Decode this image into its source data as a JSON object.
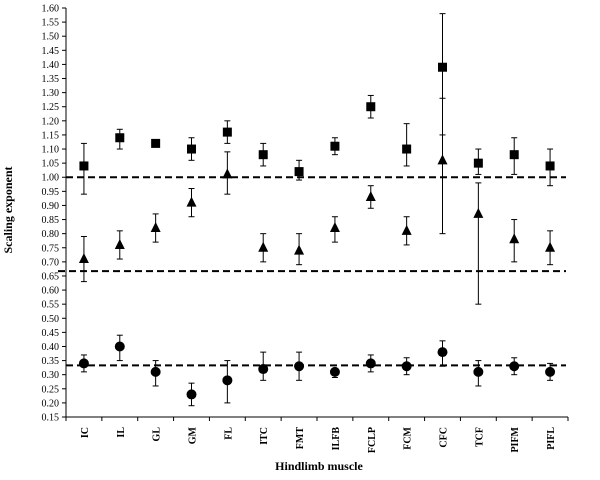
{
  "chart_data": {
    "type": "scatter",
    "xlabel": "Hindlimb muscle",
    "ylabel": "Scaling exponent",
    "ylim": [
      0.15,
      1.6
    ],
    "ytick_step": 0.05,
    "ytick_labels": [
      "0.15",
      "0.20",
      "0.25",
      "0.30",
      "0.35",
      "0.40",
      "0.45",
      "0.50",
      "0.55",
      "0.60",
      "0.65",
      "0.70",
      "0.75",
      "0.80",
      "0.85",
      "0.90",
      "0.95",
      "1.00",
      "1.05",
      "1.10",
      "1.15",
      "1.20",
      "1.25",
      "1.30",
      "1.35",
      "1.40",
      "1.45",
      "1.50",
      "1.55",
      "1.60"
    ],
    "categories": [
      "IC",
      "IL",
      "GL",
      "GM",
      "FL",
      "ITC",
      "FMT",
      "ILFB",
      "FCLP",
      "FCM",
      "CFC",
      "TCF",
      "PIFM",
      "PIFL"
    ],
    "series": [
      {
        "marker": "square",
        "values": [
          1.04,
          1.14,
          1.12,
          1.1,
          1.16,
          1.08,
          1.02,
          1.11,
          1.25,
          1.1,
          1.39,
          1.05,
          1.08,
          1.04
        ],
        "err_low": [
          0.94,
          1.1,
          1.11,
          1.06,
          1.12,
          1.04,
          0.99,
          1.08,
          1.21,
          1.04,
          1.15,
          1.01,
          1.01,
          0.97
        ],
        "err_high": [
          1.12,
          1.17,
          1.13,
          1.14,
          1.2,
          1.12,
          1.06,
          1.14,
          1.29,
          1.19,
          1.58,
          1.1,
          1.14,
          1.1
        ]
      },
      {
        "marker": "triangle",
        "values": [
          0.71,
          0.76,
          0.82,
          0.91,
          1.01,
          0.75,
          0.74,
          0.82,
          0.93,
          0.81,
          1.06,
          0.87,
          0.78,
          0.75
        ],
        "err_low": [
          0.63,
          0.71,
          0.77,
          0.86,
          0.94,
          0.7,
          0.69,
          0.77,
          0.89,
          0.76,
          0.8,
          0.55,
          0.7,
          0.69
        ],
        "err_high": [
          0.79,
          0.81,
          0.87,
          0.96,
          1.09,
          0.8,
          0.8,
          0.86,
          0.97,
          0.86,
          1.28,
          0.98,
          0.85,
          0.81
        ]
      },
      {
        "marker": "circle",
        "values": [
          0.34,
          0.4,
          0.31,
          0.23,
          0.28,
          0.32,
          0.33,
          0.31,
          0.34,
          0.33,
          0.38,
          0.31,
          0.33,
          0.31
        ],
        "err_low": [
          0.31,
          0.35,
          0.26,
          0.19,
          0.2,
          0.28,
          0.28,
          0.29,
          0.31,
          0.3,
          0.33,
          0.26,
          0.3,
          0.28
        ],
        "err_high": [
          0.37,
          0.44,
          0.35,
          0.27,
          0.35,
          0.38,
          0.38,
          0.32,
          0.37,
          0.36,
          0.42,
          0.35,
          0.36,
          0.34
        ]
      }
    ],
    "reference_lines": [
      1.0,
      0.667,
      0.333
    ],
    "marker_color": "#000000",
    "grid": false,
    "legend": "none"
  }
}
